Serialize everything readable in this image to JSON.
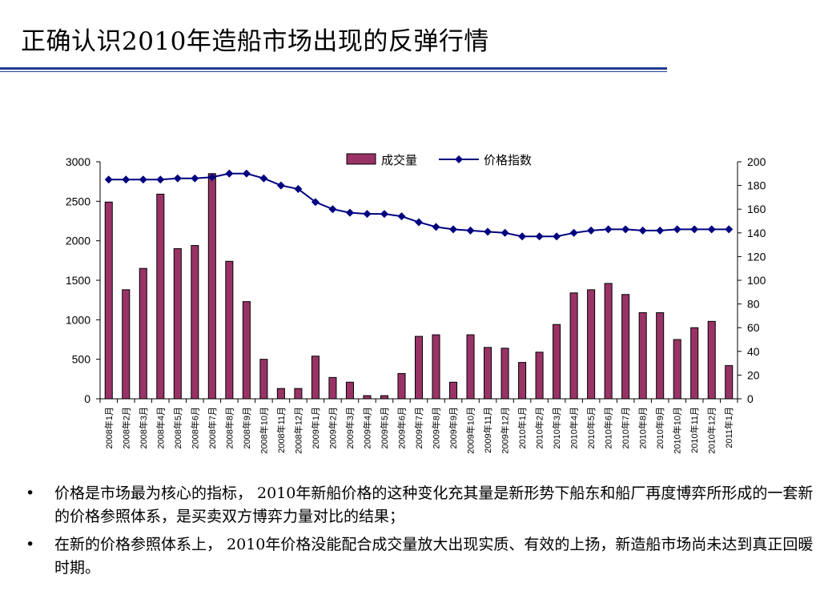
{
  "header": {
    "title": "正确认识2010年造船市场出现的反弹行情"
  },
  "chart_data": {
    "type": "bar+line",
    "categories": [
      "2008年1月",
      "2008年2月",
      "2008年3月",
      "2008年4月",
      "2008年5月",
      "2008年6月",
      "2008年7月",
      "2008年8月",
      "2008年9月",
      "2008年10月",
      "2008年11月",
      "2008年12月",
      "2009年1月",
      "2009年2月",
      "2009年3月",
      "2009年4月",
      "2009年5月",
      "2009年6月",
      "2009年7月",
      "2009年8月",
      "2009年9月",
      "2009年10月",
      "2009年11月",
      "2009年12月",
      "2010年1月",
      "2010年2月",
      "2010年3月",
      "2010年4月",
      "2010年5月",
      "2010年6月",
      "2010年7月",
      "2010年8月",
      "2010年9月",
      "2010年10月",
      "2010年11月",
      "2010年12月",
      "2011年1月"
    ],
    "series": [
      {
        "name": "成交量",
        "type": "bar",
        "axis": "left",
        "color": "#993366",
        "values": [
          2490,
          1380,
          1650,
          2590,
          1900,
          1940,
          2850,
          1740,
          1230,
          500,
          130,
          130,
          540,
          270,
          210,
          40,
          40,
          320,
          790,
          810,
          210,
          810,
          650,
          640,
          460,
          590,
          940,
          1340,
          1380,
          1460,
          1320,
          1090,
          1090,
          750,
          900,
          980,
          420
        ]
      },
      {
        "name": "价格指数",
        "type": "line",
        "axis": "right",
        "color": "#000080",
        "values": [
          185,
          185,
          185,
          185,
          186,
          186,
          187,
          190,
          190,
          186,
          180,
          177,
          166,
          160,
          157,
          156,
          156,
          154,
          149,
          145,
          143,
          142,
          141,
          140,
          137,
          137,
          137,
          140,
          142,
          143,
          143,
          142,
          142,
          143,
          143,
          143,
          143
        ]
      }
    ],
    "y_left": {
      "ticks": [
        "0",
        "500",
        "1000",
        "1500",
        "2000",
        "2500",
        "3000"
      ],
      "ylim": [
        0,
        3000
      ]
    },
    "y_right": {
      "ticks": [
        "0",
        "20",
        "40",
        "60",
        "80",
        "100",
        "120",
        "140",
        "160",
        "180",
        "200"
      ],
      "ylim": [
        0,
        200
      ]
    },
    "legend": {
      "position": "top"
    },
    "grid": false
  },
  "bullets": [
    "价格是市场最为核心的指标， 2010年新船价格的这种变化充其量是新形势下船东和船厂再度博弈所形成的一套新的价格参照体系，是买卖双方博弈力量对比的结果；",
    "在新的价格参照体系上， 2010年价格没能配合成交量放大出现实质、有效的上扬，新造船市场尚未达到真正回暖时期。"
  ],
  "bullet_symbol": "•"
}
